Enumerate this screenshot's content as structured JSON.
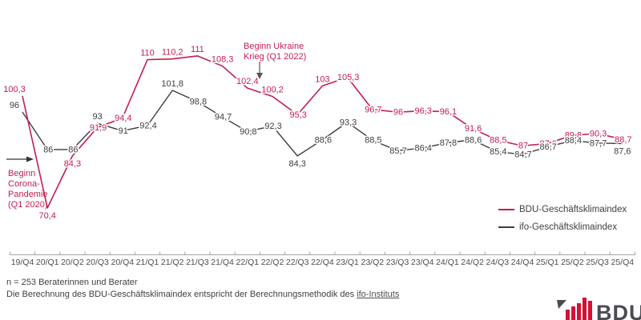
{
  "chart_data": {
    "type": "line",
    "title": "",
    "categories": [
      "19/Q4",
      "20/Q1",
      "20/Q2",
      "20/Q3",
      "20/Q4",
      "21/Q1",
      "21/Q2",
      "21/Q3",
      "21/Q4",
      "22/Q1",
      "22/Q2",
      "22/Q3",
      "22/Q4",
      "23/Q1",
      "23/Q2",
      "23/Q3",
      "23/Q4",
      "24/Q1",
      "24/Q2",
      "24/Q3",
      "24/Q4",
      "25/Q1",
      "25/Q2",
      "25/Q3",
      "25/Q4"
    ],
    "series": [
      {
        "name": "BDU-Geschäftsklimaindex",
        "color": "#c41e4f",
        "values": [
          100.3,
          70.4,
          84.3,
          91.9,
          94.4,
          110,
          110.2,
          111,
          108.3,
          102.4,
          100.2,
          95.3,
          103,
          105.3,
          96.7,
          96,
          96.3,
          96.1,
          91.6,
          88.5,
          87,
          87.6,
          89.8,
          90.3,
          88.7
        ],
        "label_placement": [
          "al",
          "b",
          "b",
          "c",
          "c",
          "a",
          "a",
          "a",
          "a",
          "a",
          "a",
          "c",
          "a",
          "c",
          "c",
          "c",
          "c",
          "c",
          "c",
          "c",
          "c",
          "c",
          "c",
          "c",
          "c"
        ]
      },
      {
        "name": "ifo-Geschäftsklimaindex",
        "color": "#3d3d3d",
        "values": [
          96,
          86,
          86,
          93,
          91,
          92.4,
          101.8,
          98.8,
          94.7,
          90.8,
          92.3,
          84.3,
          88.6,
          93.3,
          88.5,
          85.7,
          86.4,
          87.8,
          88.6,
          85.4,
          84.7,
          86.7,
          88.4,
          87.7,
          87.6
        ],
        "label_placement": [
          "al",
          "c",
          "c",
          "a",
          "c",
          "c",
          "a",
          "c",
          "c",
          "c",
          "c",
          "b",
          "c",
          "c",
          "c",
          "c",
          "c",
          "c",
          "c",
          "c",
          "c",
          "c",
          "c",
          "c",
          "b"
        ]
      }
    ],
    "ylim": [
      65,
      115
    ],
    "grid": false,
    "legend_position": "right",
    "decimal_separator": ",",
    "xlabel": "",
    "ylabel": ""
  },
  "annotations": {
    "corona": {
      "lines": [
        "Beginn",
        "Corona-",
        "Pandemie",
        "(Q1 2020)"
      ]
    },
    "ukraine": {
      "lines": [
        "Beginn Ukraine",
        "Krieg (Q1 2022)"
      ]
    }
  },
  "legend": {
    "items": [
      {
        "label": "BDU-Geschäftsklimaindex",
        "color": "#c41e4f"
      },
      {
        "label": "ifo-Geschäftsklimaindex",
        "color": "#3d3d3d"
      }
    ]
  },
  "footer": {
    "line1": "n = 253 Beraterinnen und Berater",
    "line2_prefix": "Die Berechnung des BDU-Geschäftsklimaindex entspricht der Berechnungsmethodik des ",
    "link_text": "ifo-Instituts"
  },
  "logo": {
    "text": "BDU"
  },
  "colors": {
    "bdu_red": "#c41e4f",
    "ifo_black": "#3d3d3d",
    "axis": "#a3a3a3",
    "axis_label": "#4d4d4d",
    "logo_red": "#d21236",
    "logo_gray": "#4b4b55"
  }
}
